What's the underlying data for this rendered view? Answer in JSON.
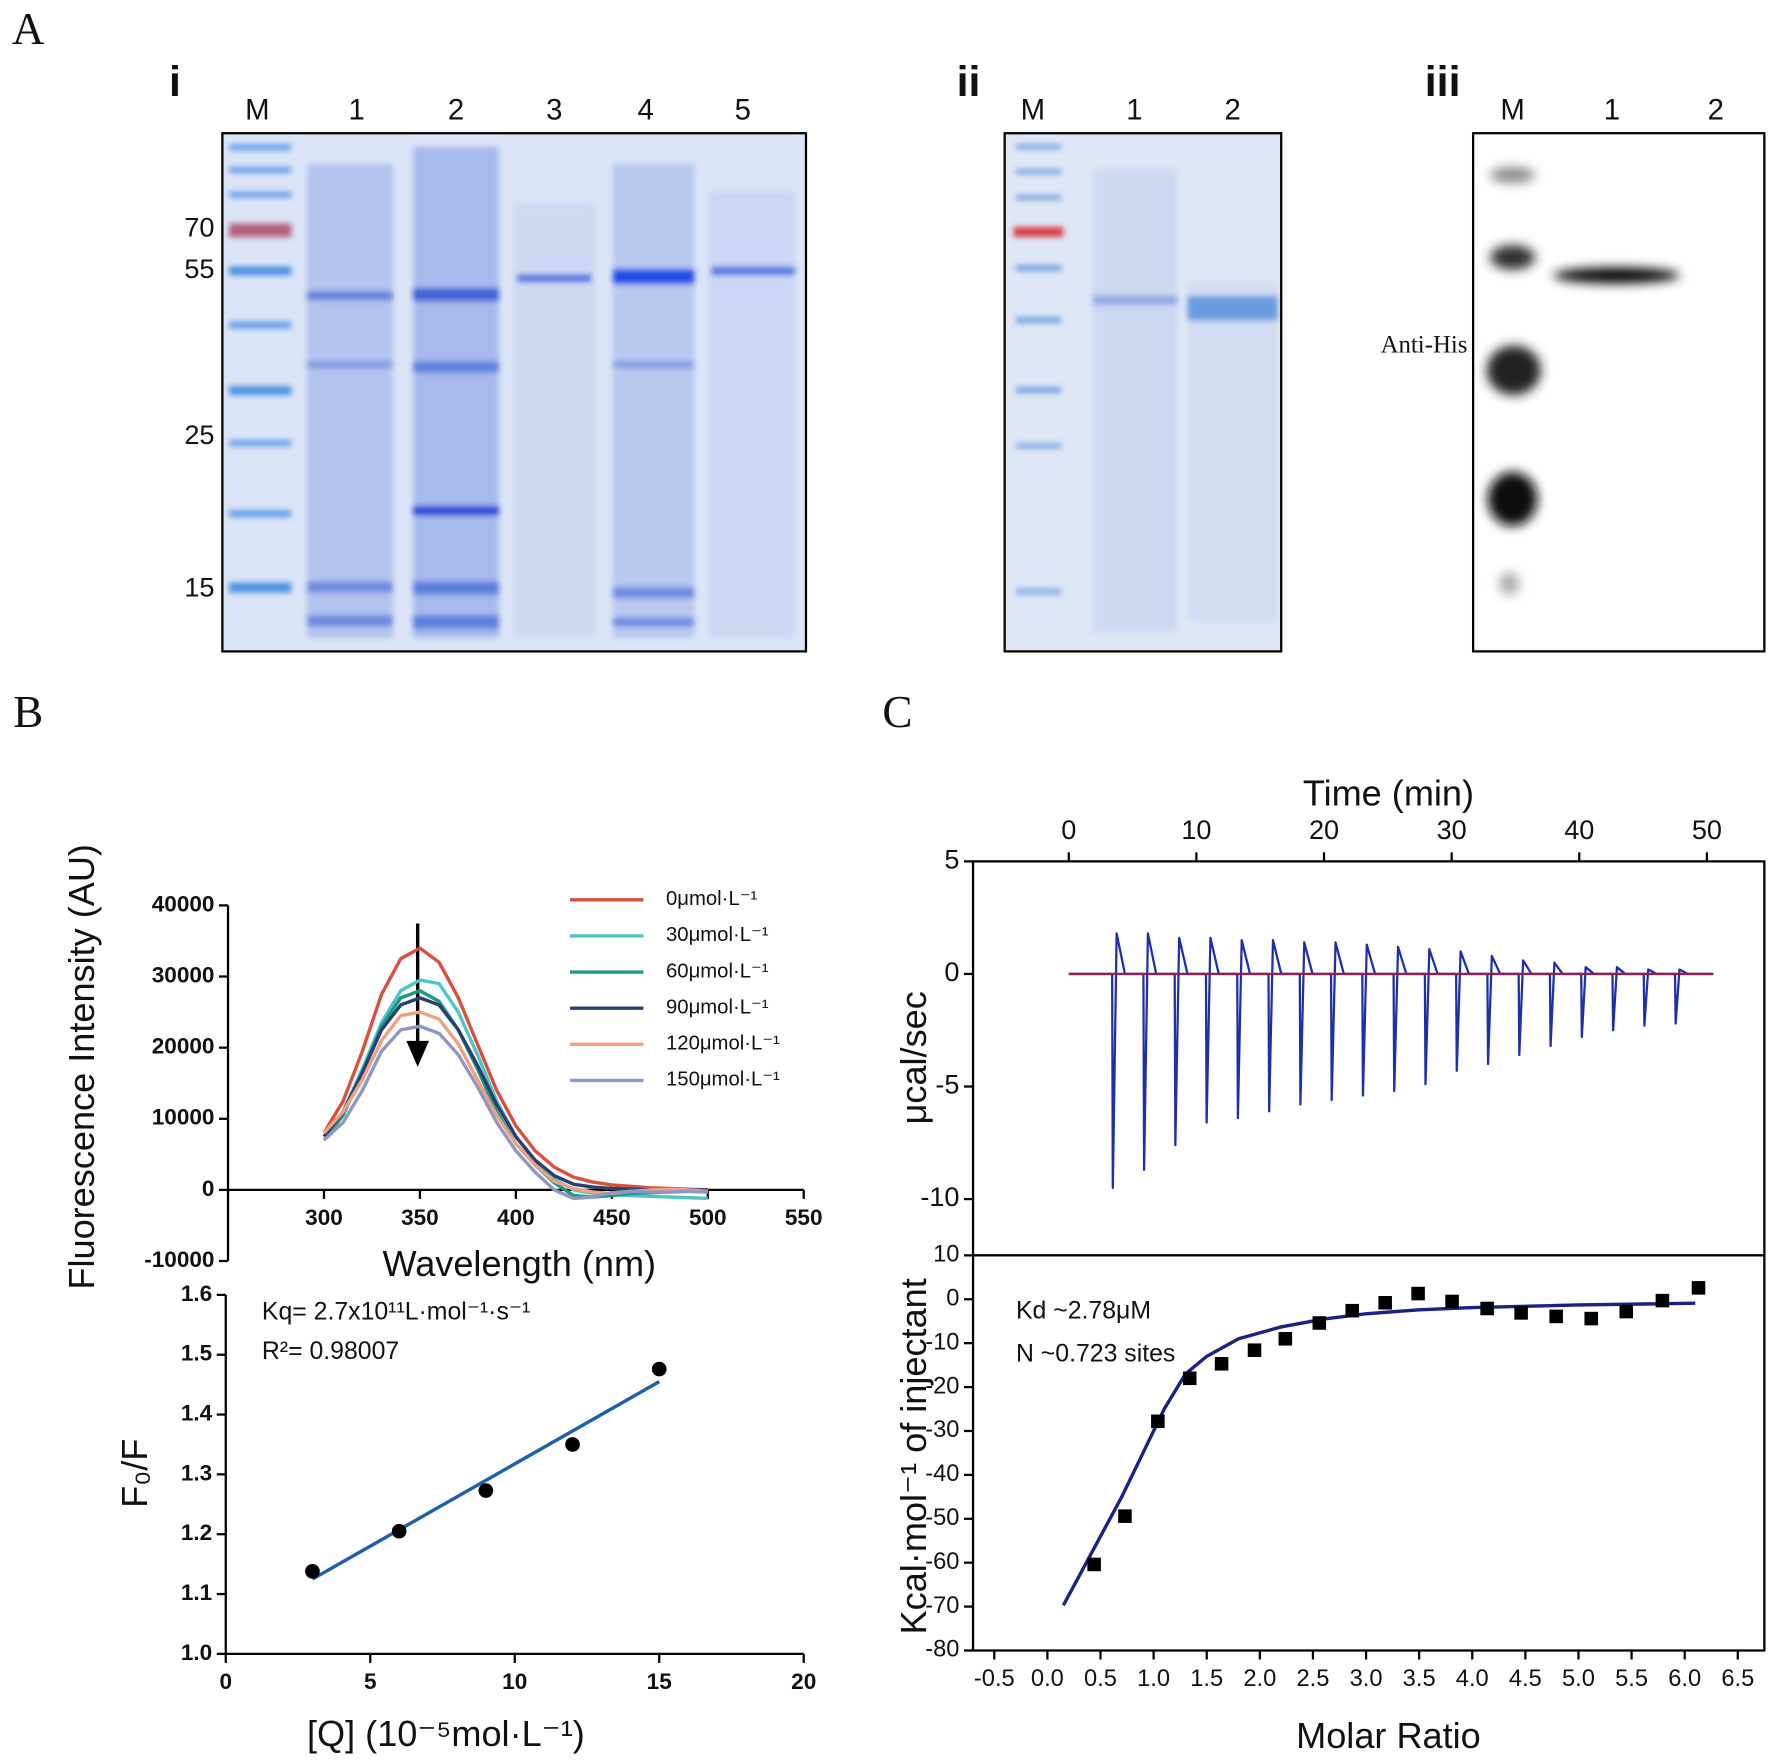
{
  "panel_labels": [
    "A",
    "B",
    "C"
  ],
  "gels": [
    {
      "title": "i",
      "lanes": [
        "M",
        "1",
        "2",
        "3",
        "4",
        "5"
      ],
      "markers": [
        "70",
        "55",
        "25",
        "15"
      ]
    },
    {
      "title": "ii",
      "lanes": [
        "M",
        "1",
        "2"
      ]
    },
    {
      "title": "iii",
      "lanes": [
        "M",
        "1",
        "2"
      ],
      "annotation": "Anti-His"
    }
  ],
  "chart_data": [
    {
      "type": "line",
      "xlabel": "Wavelength (nm)",
      "ylabel": "Fluorescence Intensity (AU)",
      "xlim": [
        250,
        550
      ],
      "xticks": [
        300,
        350,
        400,
        450,
        500,
        550
      ],
      "ylim": [
        -10000,
        40000
      ],
      "yticks": [
        -10000,
        0,
        10000,
        20000,
        30000,
        40000
      ],
      "legend": "upper right",
      "x": [
        300,
        310,
        320,
        330,
        340,
        350,
        360,
        370,
        380,
        390,
        400,
        410,
        420,
        430,
        440,
        450,
        460,
        470,
        480,
        490,
        500
      ],
      "series": [
        {
          "name": "0μmol·L⁻¹",
          "color": "#d94f3d",
          "values": [
            8000,
            12500,
            19500,
            27500,
            32500,
            34000,
            32000,
            27000,
            20500,
            14000,
            9000,
            5500,
            3200,
            1800,
            1100,
            700,
            500,
            300,
            200,
            100,
            0
          ]
        },
        {
          "name": "30μmol·L⁻¹",
          "color": "#4fc3c8",
          "values": [
            7500,
            11000,
            17000,
            23500,
            28000,
            29500,
            29000,
            25000,
            19000,
            12500,
            7500,
            4000,
            1500,
            0,
            -500,
            -700,
            -800,
            -900,
            -1000,
            -1100,
            -1200
          ]
        },
        {
          "name": "60μmol·L⁻¹",
          "color": "#1a9985",
          "values": [
            7000,
            10500,
            16500,
            23000,
            27000,
            28000,
            26500,
            22500,
            17000,
            11000,
            6500,
            3500,
            1000,
            -800,
            -1000,
            -800,
            -500,
            -400,
            -300,
            -200,
            -300
          ]
        },
        {
          "name": "90μmol·L⁻¹",
          "color": "#2b3f6e",
          "values": [
            7500,
            11000,
            16500,
            22500,
            26000,
            27000,
            26000,
            22500,
            17500,
            12000,
            7500,
            4200,
            2000,
            800,
            400,
            200,
            100,
            0,
            0,
            0,
            0
          ]
        },
        {
          "name": "120μmol·L⁻¹",
          "color": "#f0a080",
          "values": [
            8000,
            11000,
            15500,
            21000,
            24500,
            25000,
            24000,
            20500,
            15500,
            10500,
            6500,
            3500,
            1200,
            200,
            -300,
            -500,
            -200,
            0,
            100,
            0,
            -200
          ]
        },
        {
          "name": "150μmol·L⁻¹",
          "color": "#8f97c0",
          "values": [
            7000,
            9500,
            14000,
            19500,
            22500,
            23000,
            22000,
            19000,
            14500,
            9500,
            5500,
            2500,
            0,
            -1200,
            -1000,
            -400,
            -200,
            -300,
            -300,
            -200,
            -300
          ]
        }
      ]
    },
    {
      "type": "scatter",
      "xlabel": "[Q] (10⁻⁵mol·L⁻¹)",
      "ylabel": "F₀/F",
      "xlim": [
        0,
        20
      ],
      "xticks": [
        0,
        5,
        10,
        15,
        20
      ],
      "ylim": [
        1.0,
        1.6
      ],
      "yticks": [
        {
          "value": 1,
          "label": "1.0"
        },
        1.1,
        1.2,
        1.3,
        1.4,
        1.5,
        1.6
      ],
      "annotations": [
        "Kq= 2.7x10¹¹L·mol⁻¹·s⁻¹",
        "R²= 0.98007"
      ],
      "marker": "circle",
      "color": "#000000",
      "x": [
        3,
        6,
        9,
        12,
        15
      ],
      "values": [
        1.138,
        1.205,
        1.273,
        1.35,
        1.476
      ],
      "fit": {
        "color": "#1f5fa8",
        "x": [
          3,
          15
        ],
        "values": [
          1.125,
          1.455
        ]
      }
    },
    {
      "type": "line",
      "xlabel": "Time (min)",
      "ylabel": "μcal/sec",
      "xlim": [
        -7.5,
        54.5
      ],
      "xticks": [
        0,
        10,
        20,
        30,
        40,
        50
      ],
      "ylim": [
        -12.5,
        5
      ],
      "yticks": [
        -10,
        -5,
        0,
        5
      ],
      "x": [
        0,
        3.4,
        3.45,
        3.75,
        4.4,
        5.85,
        5.9,
        6.2,
        6.85,
        8.3,
        8.35,
        8.65,
        9.3,
        10.75,
        10.8,
        11.1,
        11.75,
        13.2,
        13.25,
        13.55,
        14.2,
        15.65,
        15.7,
        16.0,
        16.65,
        18.1,
        18.15,
        18.45,
        19.1,
        20.55,
        20.6,
        20.9,
        21.55,
        23.0,
        23.05,
        23.35,
        24.0,
        25.45,
        25.5,
        25.8,
        26.45,
        27.9,
        27.95,
        28.25,
        28.9,
        30.35,
        30.4,
        30.7,
        31.35,
        32.8,
        32.85,
        33.15,
        33.8,
        35.25,
        35.3,
        35.6,
        36.25,
        37.7,
        37.75,
        38.05,
        38.7,
        40.15,
        40.2,
        40.5,
        41.15,
        42.6,
        42.65,
        42.95,
        43.6,
        45.05,
        45.1,
        45.4,
        46.05,
        47.5,
        47.55,
        47.85,
        48.5,
        50.5
      ],
      "series": [
        {
          "color": "#1f2fa8",
          "values": [
            0,
            0,
            -9.5,
            1.8,
            0,
            0,
            -8.7,
            1.8,
            0,
            0,
            -7.6,
            1.6,
            0,
            0,
            -6.6,
            1.6,
            0,
            0,
            -6.4,
            1.5,
            0,
            0,
            -6.1,
            1.5,
            0,
            0,
            -5.8,
            1.4,
            0,
            0,
            -5.6,
            1.4,
            0,
            0,
            -5.4,
            1.3,
            0,
            0,
            -5.2,
            1.2,
            0,
            0,
            -4.9,
            1.1,
            0,
            0,
            -4.3,
            1.0,
            0,
            0,
            -4.0,
            0.8,
            0,
            0,
            -3.6,
            0.6,
            0,
            0,
            -3.2,
            0.5,
            0,
            0,
            -2.8,
            0.3,
            0,
            0,
            -2.5,
            0.3,
            0,
            0,
            -2.3,
            0.2,
            0,
            0,
            -2.2,
            0.2,
            0,
            0
          ]
        },
        {
          "color": "#8b2252",
          "x": [
            0,
            50.5
          ],
          "values": [
            0,
            0
          ]
        }
      ]
    },
    {
      "type": "scatter",
      "xlabel": "Molar Ratio",
      "ylabel": "Kcal·mol⁻¹ of injectant",
      "xlim": [
        -0.7,
        6.75
      ],
      "xticks": [
        -0.5,
        {
          "value": 0,
          "label": "0.0"
        },
        0.5,
        {
          "value": 1,
          "label": "1.0"
        },
        1.5,
        {
          "value": 2,
          "label": "2.0"
        },
        2.5,
        {
          "value": 3,
          "label": "3.0"
        },
        3.5,
        {
          "value": 4,
          "label": "4.0"
        },
        4.5,
        {
          "value": 5,
          "label": "5.0"
        },
        5.5,
        {
          "value": 6,
          "label": "6.0"
        },
        6.5
      ],
      "ylim": [
        -80,
        10
      ],
      "yticks": [
        -80,
        -70,
        -60,
        -50,
        -40,
        -30,
        -20,
        -10,
        0,
        10
      ],
      "annotations": [
        "Kd ~2.78μM",
        "N ~0.723 sites"
      ],
      "marker": "square",
      "color": "#000000",
      "x": [
        0.44,
        0.73,
        1.04,
        1.34,
        1.64,
        1.95,
        2.24,
        2.56,
        2.87,
        3.18,
        3.49,
        3.81,
        4.14,
        4.46,
        4.79,
        5.12,
        5.45,
        5.79,
        6.13
      ],
      "values": [
        -60.4,
        -49.4,
        -27.8,
        -18.0,
        -14.7,
        -11.6,
        -9.0,
        -5.4,
        -2.6,
        -0.8,
        1.3,
        -0.5,
        -2.1,
        -3.1,
        -3.9,
        -4.4,
        -2.8,
        -0.3,
        2.6
      ],
      "fit": {
        "color": "#1a237e",
        "x": [
          0.15,
          0.3,
          0.5,
          0.7,
          0.9,
          1.1,
          1.3,
          1.5,
          1.8,
          2.2,
          2.6,
          3.0,
          3.5,
          4.0,
          5.0,
          6.1
        ],
        "values": [
          -69.7,
          -63,
          -54,
          -45,
          -35,
          -25,
          -17,
          -13,
          -9,
          -6.3,
          -4.5,
          -3.3,
          -2.4,
          -1.9,
          -1.3,
          -0.9
        ]
      }
    }
  ]
}
